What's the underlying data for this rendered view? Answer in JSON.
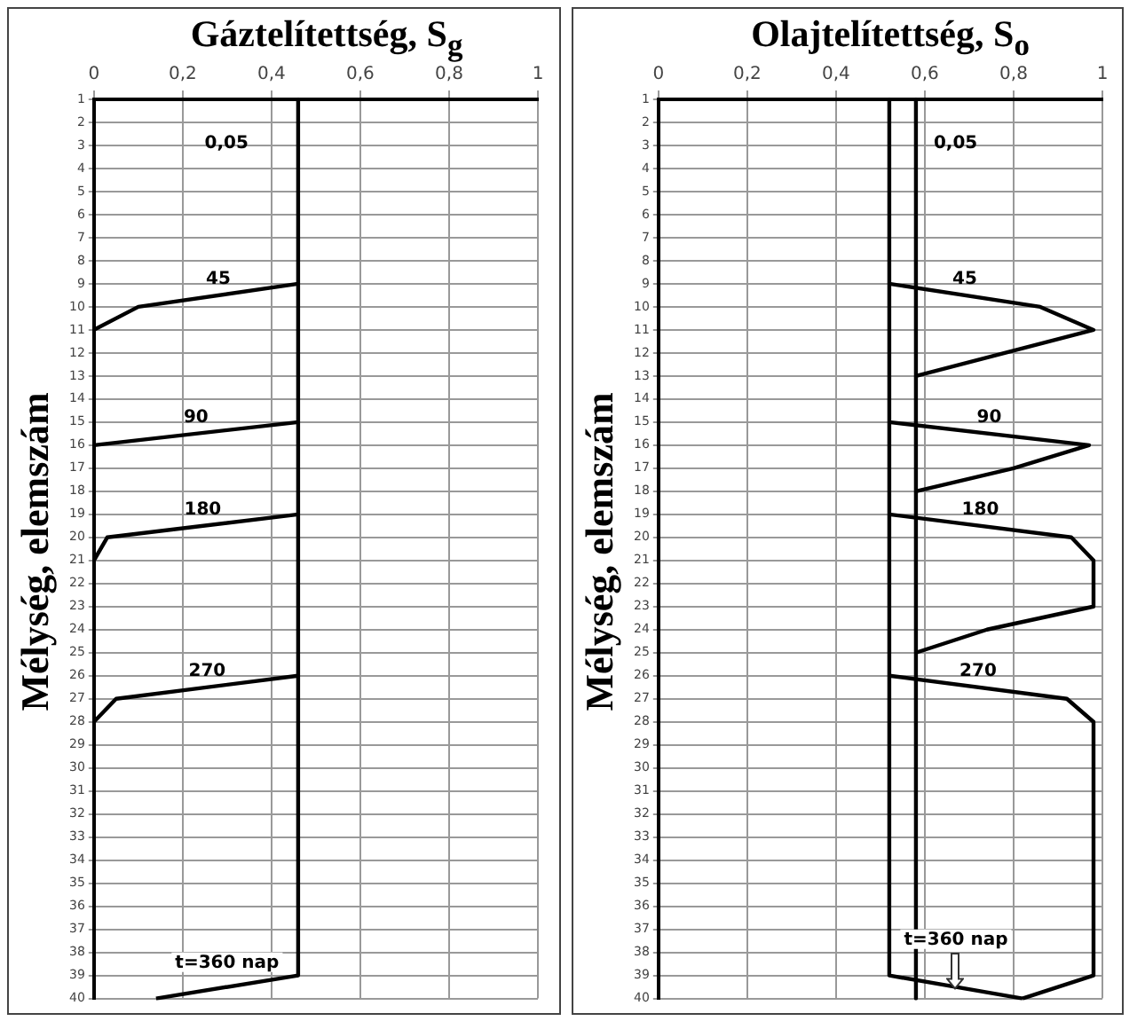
{
  "chart_data": [
    {
      "type": "line",
      "orientation": "horizontal",
      "title": "Gáztelítettség, S$_{g}$",
      "ylabel": "Mélység, elemszám",
      "categories": [
        "1",
        "2",
        "3",
        "4",
        "5",
        "6",
        "7",
        "8",
        "9",
        "10",
        "11",
        "12",
        "13",
        "14",
        "15",
        "16",
        "17",
        "18",
        "19",
        "20",
        "21",
        "22",
        "23",
        "24",
        "25",
        "26",
        "27",
        "28",
        "29",
        "30",
        "31",
        "32",
        "33",
        "34",
        "35",
        "36",
        "37",
        "38",
        "39",
        "40"
      ],
      "xlim": [
        0,
        1
      ],
      "xticks": [
        {
          "value": 0,
          "label": "0"
        },
        {
          "value": 0.2,
          "label": "0,2"
        },
        {
          "value": 0.4,
          "label": "0,4"
        },
        {
          "value": 0.6,
          "label": "0,6"
        },
        {
          "value": 0.8,
          "label": "0,8"
        },
        {
          "value": 1,
          "label": "1"
        }
      ],
      "grid": true,
      "legend": false,
      "series": [
        {
          "name": "0,05",
          "color": "#000000",
          "values": [
            0.46,
            0.46,
            0.46,
            0.46,
            0.46,
            0.46,
            0.46,
            0.46,
            0.46,
            0.46,
            0.46,
            0.46,
            0.46,
            0.46,
            0.46,
            0.46,
            0.46,
            0.46,
            0.46,
            0.46,
            0.46,
            0.46,
            0.46,
            0.46,
            0.46,
            0.46,
            0.46,
            0.46,
            0.46,
            0.46,
            0.46,
            0.46,
            0.46,
            0.46,
            0.46,
            0.46,
            0.46,
            0.46,
            0.46,
            null
          ]
        },
        {
          "name": "45",
          "color": "#000000",
          "values": [
            null,
            null,
            null,
            null,
            null,
            null,
            null,
            null,
            0.46,
            0.1,
            0,
            null,
            null,
            null,
            null,
            null,
            null,
            null,
            null,
            null,
            null,
            null,
            null,
            null,
            null,
            null,
            null,
            null,
            null,
            null,
            null,
            null,
            null,
            null,
            null,
            null,
            null,
            null,
            null,
            null
          ]
        },
        {
          "name": "90",
          "color": "#000000",
          "values": [
            null,
            null,
            null,
            null,
            null,
            null,
            null,
            null,
            null,
            null,
            null,
            null,
            null,
            null,
            0.46,
            0,
            null,
            null,
            null,
            null,
            null,
            null,
            null,
            null,
            null,
            null,
            null,
            null,
            null,
            null,
            null,
            null,
            null,
            null,
            null,
            null,
            null,
            null,
            null,
            null
          ]
        },
        {
          "name": "180",
          "color": "#000000",
          "values": [
            null,
            null,
            null,
            null,
            null,
            null,
            null,
            null,
            null,
            null,
            null,
            null,
            null,
            null,
            null,
            null,
            null,
            null,
            0.46,
            0.03,
            0,
            null,
            null,
            null,
            null,
            null,
            null,
            null,
            null,
            null,
            null,
            null,
            null,
            null,
            null,
            null,
            null,
            null,
            null,
            null
          ]
        },
        {
          "name": "270",
          "color": "#000000",
          "values": [
            null,
            null,
            null,
            null,
            null,
            null,
            null,
            null,
            null,
            null,
            null,
            null,
            null,
            null,
            null,
            null,
            null,
            null,
            null,
            null,
            null,
            null,
            null,
            null,
            null,
            0.46,
            0.05,
            0,
            null,
            null,
            null,
            null,
            null,
            null,
            null,
            null,
            null,
            null,
            null,
            null
          ]
        },
        {
          "name": "t=360 nap",
          "color": "#000000",
          "values": [
            null,
            null,
            null,
            null,
            null,
            null,
            null,
            null,
            null,
            null,
            null,
            null,
            null,
            null,
            null,
            null,
            null,
            null,
            null,
            null,
            null,
            null,
            null,
            null,
            null,
            null,
            null,
            null,
            null,
            null,
            null,
            null,
            null,
            null,
            null,
            null,
            null,
            null,
            0.46,
            0.14
          ]
        }
      ]
    },
    {
      "type": "line",
      "orientation": "horizontal",
      "title": "Olajtelítettség, S$_{o}$",
      "ylabel": "Mélység, elemszám",
      "categories": [
        "1",
        "2",
        "3",
        "4",
        "5",
        "6",
        "7",
        "8",
        "9",
        "10",
        "11",
        "12",
        "13",
        "14",
        "15",
        "16",
        "17",
        "18",
        "19",
        "20",
        "21",
        "22",
        "23",
        "24",
        "25",
        "26",
        "27",
        "28",
        "29",
        "30",
        "31",
        "32",
        "33",
        "34",
        "35",
        "36",
        "37",
        "38",
        "39",
        "40"
      ],
      "xlim": [
        0,
        1
      ],
      "xticks": [
        {
          "value": 0,
          "label": "0"
        },
        {
          "value": 0.2,
          "label": "0,2"
        },
        {
          "value": 0.4,
          "label": "0,4"
        },
        {
          "value": 0.6,
          "label": "0,6"
        },
        {
          "value": 0.8,
          "label": "0,8"
        },
        {
          "value": 1,
          "label": "1"
        }
      ],
      "grid": true,
      "legend": false,
      "series": [
        {
          "name": "0,05",
          "color": "#000000",
          "values": [
            0.58,
            0.58,
            0.58,
            0.58,
            0.58,
            0.58,
            0.58,
            0.58,
            0.58,
            0.58,
            0.58,
            0.58,
            0.58,
            0.58,
            0.58,
            0.58,
            0.58,
            0.58,
            0.58,
            0.58,
            0.58,
            0.58,
            0.58,
            0.58,
            0.58,
            0.58,
            0.58,
            0.58,
            0.58,
            0.58,
            0.58,
            0.58,
            0.58,
            0.58,
            0.58,
            0.58,
            0.58,
            0.58,
            0.58,
            0.58
          ]
        },
        {
          "name": "45",
          "color": "#000000",
          "values": [
            null,
            null,
            null,
            null,
            null,
            null,
            null,
            null,
            0.52,
            0.86,
            0.98,
            0.78,
            0.58,
            null,
            null,
            null,
            null,
            null,
            null,
            null,
            null,
            null,
            null,
            null,
            null,
            null,
            null,
            null,
            null,
            null,
            null,
            null,
            null,
            null,
            null,
            null,
            null,
            null,
            null,
            null
          ]
        },
        {
          "name": "90",
          "color": "#000000",
          "values": [
            null,
            null,
            null,
            null,
            null,
            null,
            null,
            null,
            null,
            null,
            null,
            null,
            null,
            null,
            0.52,
            0.97,
            0.8,
            0.58,
            null,
            null,
            null,
            null,
            null,
            null,
            null,
            null,
            null,
            null,
            null,
            null,
            null,
            null,
            null,
            null,
            null,
            null,
            null,
            null,
            null,
            null
          ]
        },
        {
          "name": "180",
          "color": "#000000",
          "values": [
            null,
            null,
            null,
            null,
            null,
            null,
            null,
            null,
            null,
            null,
            null,
            null,
            null,
            null,
            null,
            null,
            null,
            null,
            0.52,
            0.93,
            0.98,
            0.98,
            0.98,
            0.74,
            0.58,
            null,
            null,
            null,
            null,
            null,
            null,
            null,
            null,
            null,
            null,
            null,
            null,
            null,
            null,
            null
          ]
        },
        {
          "name": "270",
          "color": "#000000",
          "values": [
            null,
            null,
            null,
            null,
            null,
            null,
            null,
            null,
            null,
            null,
            null,
            null,
            null,
            null,
            null,
            null,
            null,
            null,
            null,
            null,
            null,
            null,
            null,
            null,
            null,
            0.52,
            0.92,
            0.98,
            0.98,
            0.98,
            0.98,
            0.98,
            0.98,
            0.98,
            0.98,
            0.98,
            0.98,
            0.98,
            0.98,
            0.82
          ]
        },
        {
          "name": "t=360 nap",
          "color": "#000000",
          "values": [
            0.52,
            0.52,
            0.52,
            0.52,
            0.52,
            0.52,
            0.52,
            0.52,
            0.52,
            0.52,
            0.52,
            0.52,
            0.52,
            0.52,
            0.52,
            0.52,
            0.52,
            0.52,
            0.52,
            0.52,
            0.52,
            0.52,
            0.52,
            0.52,
            0.52,
            0.52,
            0.52,
            0.52,
            0.52,
            0.52,
            0.52,
            0.52,
            0.52,
            0.52,
            0.52,
            0.52,
            0.52,
            0.52,
            0.52,
            0.82
          ]
        }
      ]
    }
  ]
}
